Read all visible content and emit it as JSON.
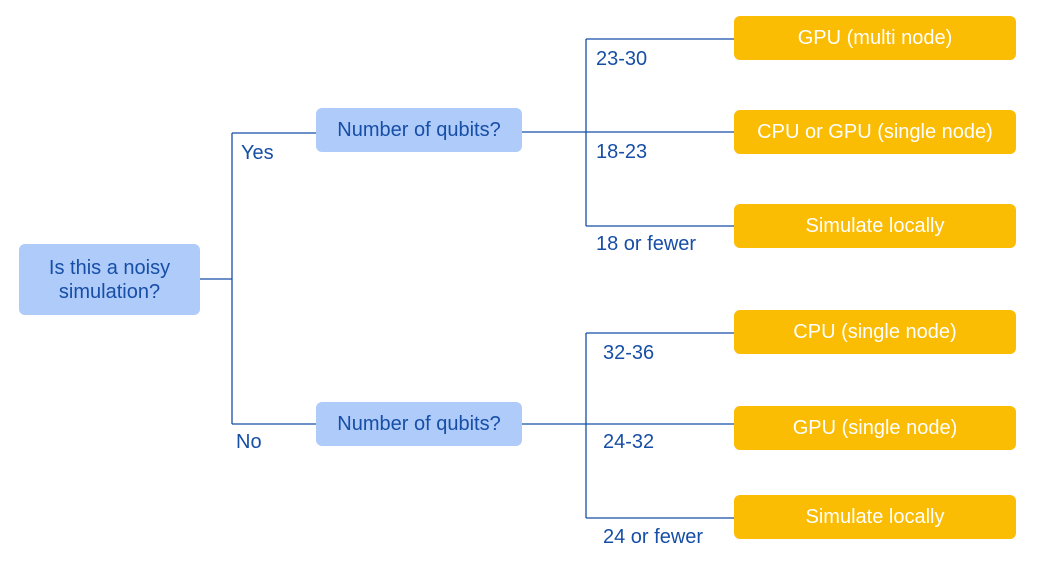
{
  "root_question": "Is this a noisy simulation?",
  "branches": {
    "yes": {
      "label": "Yes",
      "question": "Number of qubits?",
      "options": [
        {
          "range": "23-30",
          "result": "GPU (multi node)"
        },
        {
          "range": "18-23",
          "result": "CPU or GPU (single node)"
        },
        {
          "range": "18 or fewer",
          "result": "Simulate locally"
        }
      ]
    },
    "no": {
      "label": "No",
      "question": "Number of qubits?",
      "options": [
        {
          "range": "32-36",
          "result": "CPU (single node)"
        },
        {
          "range": "24-32",
          "result": "GPU (single node)"
        },
        {
          "range": "24 or fewer",
          "result": "Simulate locally"
        }
      ]
    }
  },
  "colors": {
    "question_fill": "#aecbfa",
    "question_text": "#174ea6",
    "result_fill": "#fbbc04",
    "result_text": "#ffffff",
    "connector": "#174ea6"
  }
}
